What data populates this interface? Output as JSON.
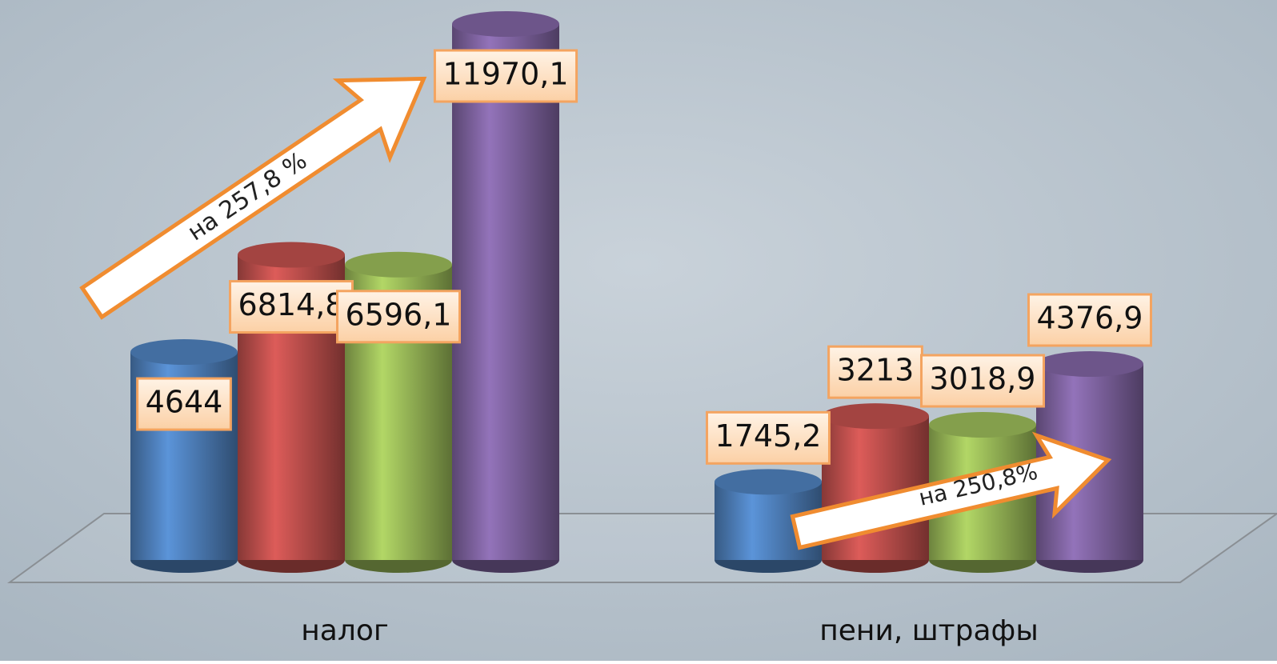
{
  "chart_data": {
    "type": "cylinder",
    "categories": [
      "налог",
      "пени, штрафы"
    ],
    "series": [
      {
        "color": "#4f81bd",
        "values": [
          4644,
          1745.2
        ],
        "value_labels": [
          "4644",
          "1745,2"
        ]
      },
      {
        "color": "#c0504d",
        "values": [
          6814.8,
          3213
        ],
        "value_labels": [
          "6814,8",
          "3213"
        ]
      },
      {
        "color": "#9bbb59",
        "values": [
          6596.1,
          3018.9
        ],
        "value_labels": [
          "6596,1",
          "3018,9"
        ]
      },
      {
        "color": "#8064a2",
        "values": [
          11970.1,
          4376.9
        ],
        "value_labels": [
          "11970,1",
          "4376,9"
        ]
      }
    ],
    "annotations": [
      "на 257,8 %",
      "на 250,8%"
    ]
  }
}
